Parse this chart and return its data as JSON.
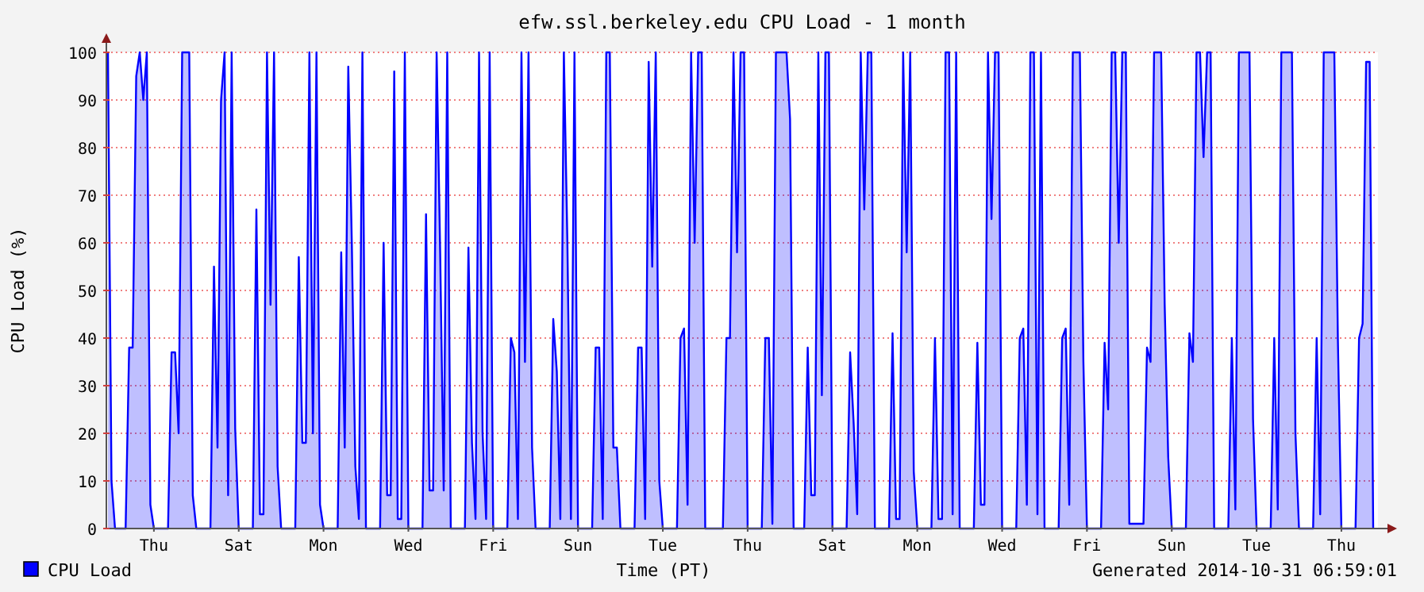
{
  "chart_data": {
    "type": "area",
    "title": "efw.ssl.berkeley.edu CPU Load - 1 month",
    "xlabel": "Time (PT)",
    "ylabel": "CPU Load (%)",
    "annotations": [
      "Generated 2014-10-31 06:59:01"
    ],
    "ylim": [
      0,
      100
    ],
    "yticks": [
      0,
      10,
      20,
      30,
      40,
      50,
      60,
      70,
      80,
      90,
      100
    ],
    "grid": "y",
    "legend": "bottom left",
    "categories": [
      null,
      null,
      null,
      null,
      null,
      null,
      null,
      null,
      null,
      null,
      null,
      null,
      null,
      "Thu",
      null,
      null,
      null,
      null,
      null,
      null,
      null,
      null,
      null,
      null,
      null,
      null,
      null,
      null,
      null,
      null,
      null,
      null,
      null,
      null,
      null,
      null,
      null,
      "Sat",
      null,
      null,
      null,
      null,
      null,
      null,
      null,
      null,
      null,
      null,
      null,
      null,
      null,
      null,
      null,
      null,
      null,
      null,
      null,
      null,
      null,
      null,
      null,
      "Mon",
      null,
      null,
      null,
      null,
      null,
      null,
      null,
      null,
      null,
      null,
      null,
      null,
      null,
      null,
      null,
      null,
      null,
      null,
      null,
      null,
      null,
      null,
      null,
      "Wed",
      null,
      null,
      null,
      null,
      null,
      null,
      null,
      null,
      null,
      null,
      null,
      null,
      null,
      null,
      null,
      null,
      null,
      null,
      null,
      null,
      null,
      null,
      null,
      "Fri",
      null,
      null,
      null,
      null,
      null,
      null,
      null,
      null,
      null,
      null,
      null,
      null,
      null,
      null,
      null,
      null,
      null,
      null,
      null,
      null,
      null,
      null,
      null,
      "Sun",
      null,
      null,
      null,
      null,
      null,
      null,
      null,
      null,
      null,
      null,
      null,
      null,
      null,
      null,
      null,
      null,
      null,
      null,
      null,
      null,
      null,
      null,
      null,
      "Tue",
      null,
      null,
      null,
      null,
      null,
      null,
      null,
      null,
      null,
      null,
      null,
      null,
      null,
      null,
      null,
      null,
      null,
      null,
      null,
      null,
      null,
      null,
      null,
      "Thu",
      null,
      null,
      null,
      null,
      null,
      null,
      null,
      null,
      null,
      null,
      null,
      null,
      null,
      null,
      null,
      null,
      null,
      null,
      null,
      null,
      null,
      null,
      null,
      "Sat",
      null,
      null,
      null,
      null,
      null,
      null,
      null,
      null,
      null,
      null,
      null,
      null,
      null,
      null,
      null,
      null,
      null,
      null,
      null,
      null,
      null,
      null,
      null,
      "Mon",
      null,
      null,
      null,
      null,
      null,
      null,
      null,
      null,
      null,
      null,
      null,
      null,
      null,
      null,
      null,
      null,
      null,
      null,
      null,
      null,
      null,
      null,
      null,
      "Wed",
      null,
      null,
      null,
      null,
      null,
      null,
      null,
      null,
      null,
      null,
      null,
      null,
      null,
      null,
      null,
      null,
      null,
      null,
      null,
      null,
      null,
      null,
      null,
      "Fri",
      null,
      null,
      null,
      null,
      null,
      null,
      null,
      null,
      null,
      null,
      null,
      null,
      null,
      null,
      null,
      null,
      null,
      null,
      null,
      null,
      null,
      null,
      null,
      "Sun",
      null,
      null,
      null,
      null,
      null,
      null,
      null,
      null,
      null,
      null,
      null,
      null,
      null,
      null,
      null,
      null,
      null,
      null,
      null,
      null,
      null,
      null,
      null,
      "Tue",
      null,
      null,
      null,
      null,
      null,
      null,
      null,
      null,
      null,
      null,
      null,
      null,
      null,
      null,
      null,
      null,
      null,
      null,
      null,
      null,
      null,
      null,
      null,
      "Thu",
      null,
      null,
      null,
      null,
      null,
      null,
      null,
      null,
      null
    ],
    "series": [
      {
        "name": "CPU Load",
        "color": "#0000ff",
        "values": [
          100,
          10,
          0,
          0,
          0,
          0,
          38,
          38,
          95,
          100,
          90,
          100,
          5,
          0,
          0,
          0,
          0,
          0,
          37,
          37,
          20,
          100,
          100,
          100,
          7,
          0,
          0,
          0,
          0,
          0,
          55,
          17,
          90,
          100,
          7,
          100,
          21,
          0,
          0,
          0,
          0,
          0,
          67,
          3,
          3,
          100,
          47,
          100,
          13,
          0,
          0,
          0,
          0,
          0,
          57,
          18,
          18,
          100,
          20,
          100,
          5,
          0,
          0,
          0,
          0,
          0,
          58,
          17,
          97,
          60,
          13,
          2,
          100,
          0,
          0,
          0,
          0,
          0,
          60,
          7,
          7,
          96,
          2,
          2,
          100,
          0,
          0,
          0,
          0,
          0,
          66,
          8,
          8,
          100,
          58,
          8,
          100,
          0,
          0,
          0,
          0,
          0,
          59,
          18,
          2,
          100,
          20,
          2,
          100,
          0,
          0,
          0,
          0,
          0,
          40,
          37,
          2,
          100,
          35,
          100,
          17,
          0,
          0,
          0,
          0,
          0,
          44,
          33,
          2,
          100,
          60,
          2,
          100,
          0,
          0,
          0,
          0,
          0,
          38,
          38,
          2,
          100,
          100,
          17,
          17,
          0,
          0,
          0,
          0,
          0,
          38,
          38,
          2,
          98,
          55,
          100,
          10,
          0,
          0,
          0,
          0,
          0,
          40,
          42,
          5,
          100,
          60,
          100,
          100,
          0,
          0,
          0,
          0,
          0,
          0,
          40,
          40,
          100,
          58,
          100,
          100,
          0,
          0,
          0,
          0,
          0,
          40,
          40,
          1,
          100,
          100,
          100,
          100,
          86,
          0,
          0,
          0,
          0,
          38,
          7,
          7,
          100,
          28,
          100,
          100,
          0,
          0,
          0,
          0,
          0,
          37,
          22,
          3,
          100,
          67,
          100,
          100,
          0,
          0,
          0,
          0,
          0,
          41,
          2,
          2,
          100,
          58,
          100,
          12,
          0,
          0,
          0,
          0,
          0,
          40,
          2,
          2,
          100,
          100,
          3,
          100,
          0,
          0,
          0,
          0,
          0,
          39,
          5,
          5,
          100,
          65,
          100,
          100,
          0,
          0,
          0,
          0,
          0,
          40,
          42,
          5,
          100,
          100,
          3,
          100,
          0,
          0,
          0,
          0,
          0,
          40,
          42,
          5,
          100,
          100,
          100,
          35,
          0,
          0,
          0,
          0,
          0,
          39,
          25,
          100,
          100,
          60,
          100,
          100,
          1,
          1,
          1,
          1,
          1,
          38,
          35,
          100,
          100,
          100,
          47,
          15,
          0,
          0,
          0,
          0,
          0,
          41,
          35,
          100,
          100,
          78,
          100,
          100,
          0,
          0,
          0,
          0,
          0,
          40,
          4,
          100,
          100,
          100,
          100,
          23,
          0,
          0,
          0,
          0,
          0,
          40,
          4,
          100,
          100,
          100,
          100,
          20,
          0,
          0,
          0,
          0,
          0,
          40,
          3,
          100,
          100,
          100,
          100,
          40,
          0,
          0,
          0,
          0,
          0,
          40,
          43,
          98,
          98,
          0
        ]
      }
    ]
  }
}
